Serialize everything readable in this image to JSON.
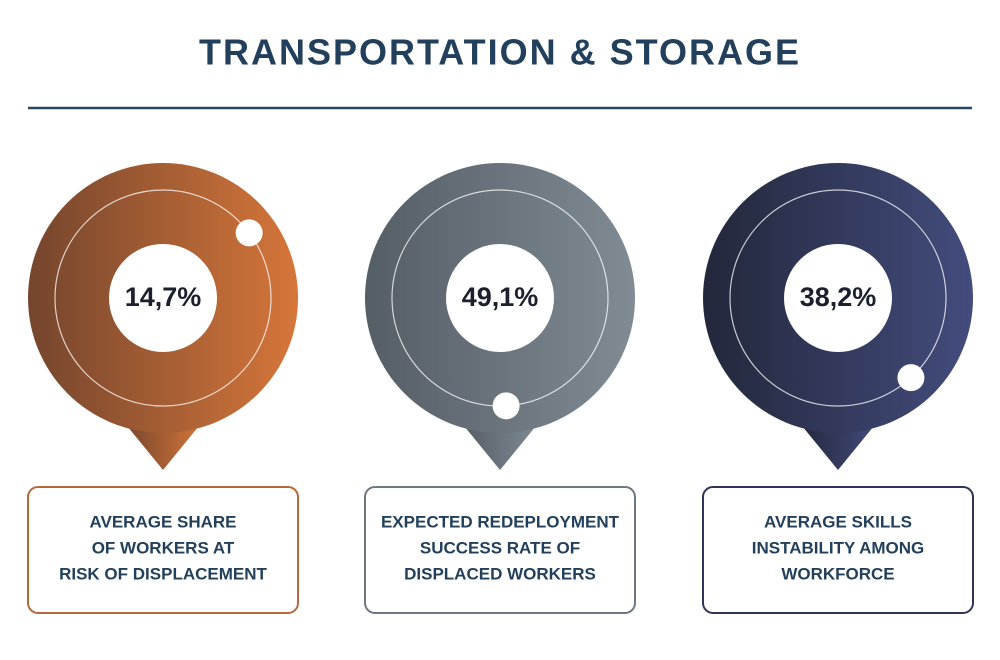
{
  "title": "TRANSPORTATION & STORAGE",
  "items": [
    {
      "value": 14.7,
      "value_label": "14,7%",
      "gradient": [
        "#74452d",
        "#d6763a"
      ],
      "border": "#b8683a",
      "description": [
        "AVERAGE SHARE",
        "OF WORKERS AT",
        "RISK OF DISPLACEMENT"
      ]
    },
    {
      "value": 49.1,
      "value_label": "49,1%",
      "gradient": [
        "#555d65",
        "#808b93"
      ],
      "border": "#6e777f",
      "description": [
        "EXPECTED REDEPLOYMENT",
        "SUCCESS RATE OF",
        "DISPLACED WORKERS"
      ]
    },
    {
      "value": 38.2,
      "value_label": "38,2%",
      "gradient": [
        "#23273b",
        "#434c7d"
      ],
      "border": "#2f3558",
      "description": [
        "AVERAGE SKILLS",
        "INSTABILITY AMONG",
        "WORKFORCE"
      ]
    }
  ]
}
